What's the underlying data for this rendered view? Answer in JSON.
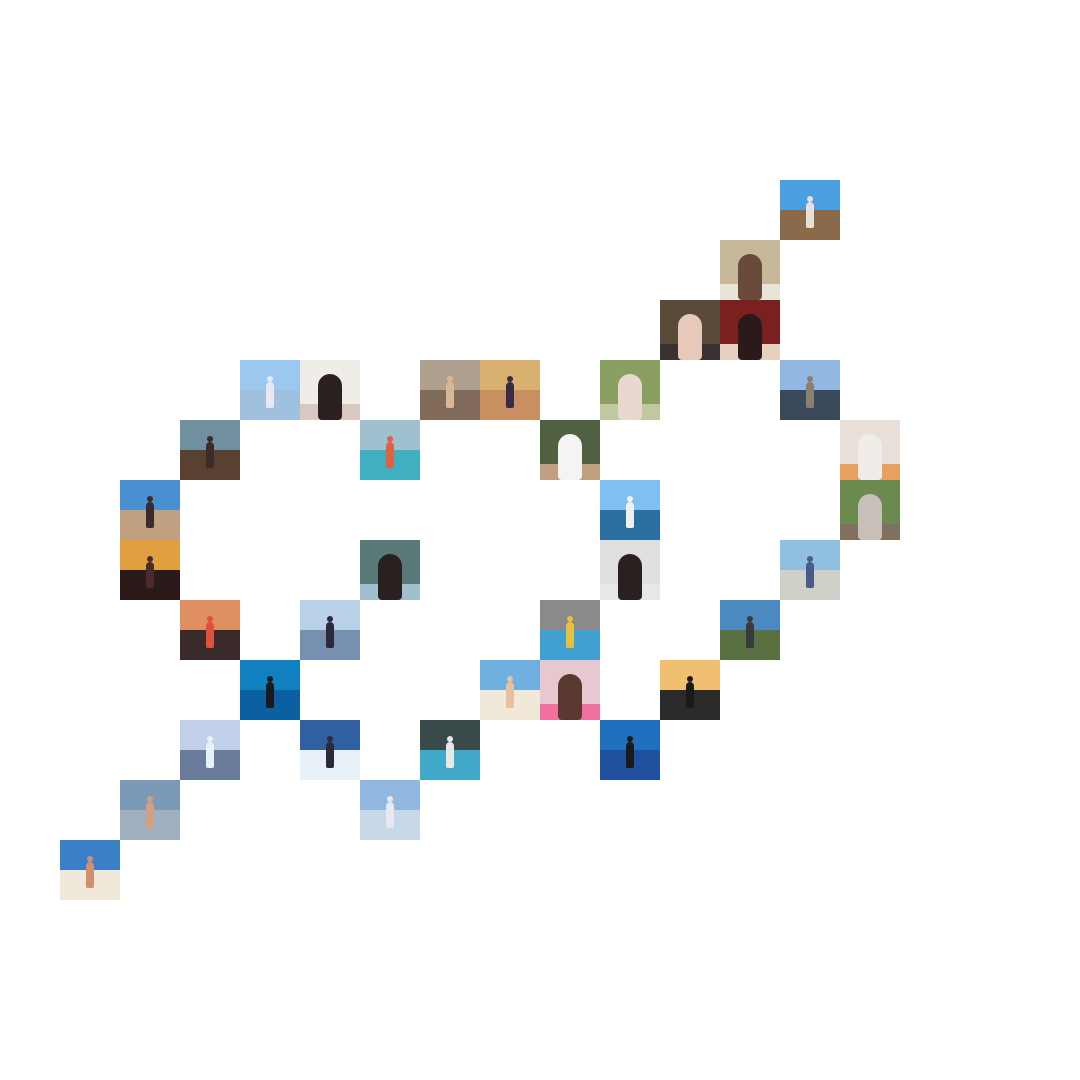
{
  "collage": {
    "tiles": [
      {
        "kind": "landscape",
        "sky": "#4a9fe0",
        "ground": "#8a6a4a",
        "figure": "#e8e0d8"
      },
      {
        "kind": "portrait",
        "sky": "#c8b89a",
        "ground": "#e8e4d8",
        "figure": "#6a4a3a"
      },
      {
        "kind": "portrait",
        "sky": "#5a4a3a",
        "ground": "#3a3030",
        "figure": "#e8c8b8"
      },
      {
        "kind": "portrait",
        "sky": "#7a2020",
        "ground": "#e8d0c0",
        "figure": "#2a1a1a"
      },
      {
        "kind": "landscape",
        "sky": "#9ac8f0",
        "ground": "#a0c0e0",
        "figure": "#e8e8f0"
      },
      {
        "kind": "portrait",
        "sky": "#f0ece8",
        "ground": "#d8c8c0",
        "figure": "#2a2020"
      },
      {
        "kind": "landscape",
        "sky": "#b0a090",
        "ground": "#806a5a",
        "figure": "#d8b898"
      },
      {
        "kind": "landscape",
        "sky": "#d8b070",
        "ground": "#c89060",
        "figure": "#3a2a4a"
      },
      {
        "kind": "portrait",
        "sky": "#8aa060",
        "ground": "#c0c8a0",
        "figure": "#e8d8d0"
      },
      {
        "kind": "landscape",
        "sky": "#90b8e0",
        "ground": "#3a4a5a",
        "figure": "#8a8070"
      },
      {
        "kind": "landscape",
        "sky": "#7090a0",
        "ground": "#5a4030",
        "figure": "#3a2a2a"
      },
      {
        "kind": "landscape",
        "sky": "#a0c0d0",
        "ground": "#40b0c0",
        "figure": "#e06040"
      },
      {
        "kind": "portrait",
        "sky": "#506040",
        "ground": "#c0a080",
        "figure": "#f4f4f4"
      },
      {
        "kind": "portrait",
        "sky": "#e8e0d8",
        "ground": "#e8a060",
        "figure": "#f0ece8"
      },
      {
        "kind": "landscape",
        "sky": "#4a90d0",
        "ground": "#c0a080",
        "figure": "#3a2a2a"
      },
      {
        "kind": "landscape",
        "sky": "#80c0f0",
        "ground": "#2a70a0",
        "figure": "#f0f0f0"
      },
      {
        "kind": "portrait",
        "sky": "#6a8a50",
        "ground": "#807060",
        "figure": "#c8c0b8"
      },
      {
        "kind": "landscape",
        "sky": "#e0a040",
        "ground": "#2a1a1a",
        "figure": "#4a2a2a"
      },
      {
        "kind": "portrait",
        "sky": "#5a7a7a",
        "ground": "#a0c0d0",
        "figure": "#2a2020"
      },
      {
        "kind": "portrait",
        "sky": "#e0e0e0",
        "ground": "#e8e8e8",
        "figure": "#2a2020"
      },
      {
        "kind": "landscape",
        "sky": "#90c0e0",
        "ground": "#d0d0c8",
        "figure": "#4a5a8a"
      },
      {
        "kind": "landscape",
        "sky": "#e09060",
        "ground": "#3a2a2a",
        "figure": "#e05040"
      },
      {
        "kind": "landscape",
        "sky": "#b8d0e8",
        "ground": "#7890b0",
        "figure": "#2a2a3a"
      },
      {
        "kind": "landscape",
        "sky": "#8a8a8a",
        "ground": "#40a0d0",
        "figure": "#e8c040"
      },
      {
        "kind": "landscape",
        "sky": "#4a8ac0",
        "ground": "#5a7040",
        "figure": "#3a3a3a"
      },
      {
        "kind": "landscape",
        "sky": "#1080c0",
        "ground": "#0a60a0",
        "figure": "#1a1a1a"
      },
      {
        "kind": "landscape",
        "sky": "#70b0e0",
        "ground": "#f0e8d8",
        "figure": "#e8c0a0"
      },
      {
        "kind": "portrait",
        "sky": "#e8c8d0",
        "ground": "#f070a0",
        "figure": "#5a3a30"
      },
      {
        "kind": "landscape",
        "sky": "#f0c070",
        "ground": "#2a2a2a",
        "figure": "#1a1a1a"
      },
      {
        "kind": "landscape",
        "sky": "#c0d0e8",
        "ground": "#6a7a9a",
        "figure": "#e8f0f8"
      },
      {
        "kind": "landscape",
        "sky": "#3060a0",
        "ground": "#e8f0f8",
        "figure": "#2a2a3a"
      },
      {
        "kind": "landscape",
        "sky": "#3a4a4a",
        "ground": "#40a8c8",
        "figure": "#e8e8e8"
      },
      {
        "kind": "landscape",
        "sky": "#2070c0",
        "ground": "#2050a0",
        "figure": "#1a1a1a"
      },
      {
        "kind": "landscape",
        "sky": "#7a9ab8",
        "ground": "#a0b0c0",
        "figure": "#d0a080"
      },
      {
        "kind": "landscape",
        "sky": "#90b8e0",
        "ground": "#c8d8e8",
        "figure": "#e8e8f0"
      },
      {
        "kind": "landscape",
        "sky": "#3a80c8",
        "ground": "#f0e8d8",
        "figure": "#d09070"
      }
    ]
  }
}
